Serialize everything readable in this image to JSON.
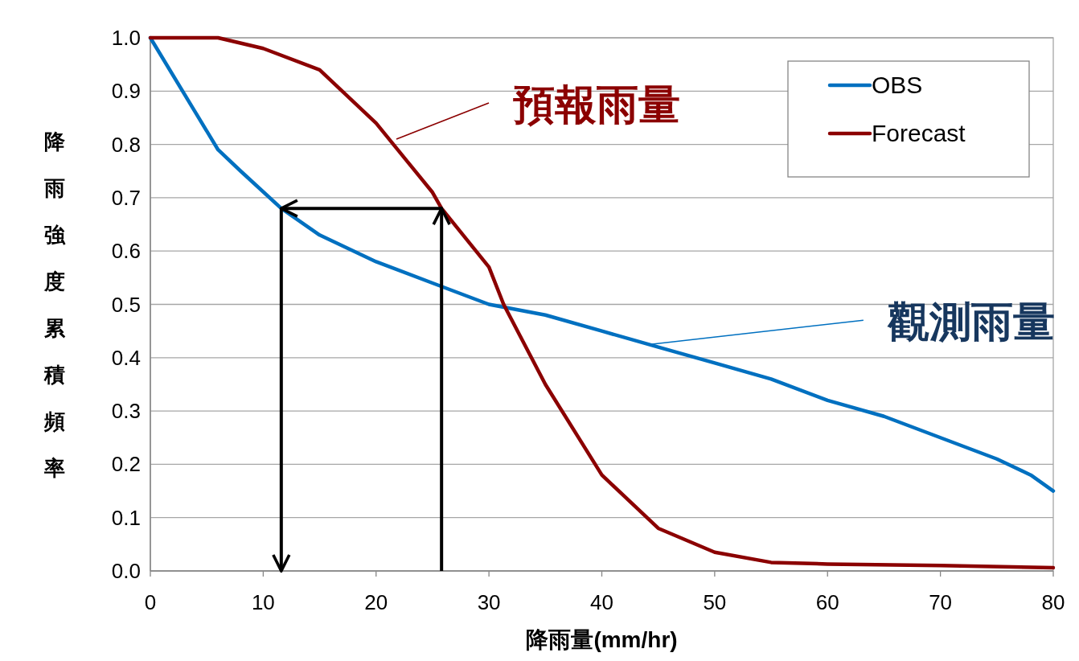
{
  "chart_data": {
    "type": "line",
    "xlabel": "降雨量(mm/hr)",
    "ylabel": "降雨強度累積頻率",
    "xlim": [
      0,
      80
    ],
    "xticks": [
      0,
      10,
      20,
      30,
      40,
      50,
      60,
      70,
      80
    ],
    "ylim": [
      0,
      1.0
    ],
    "yticks": [
      {
        "value": 0,
        "label": "0.0"
      },
      {
        "value": 0.1,
        "label": "0.1"
      },
      {
        "value": 0.2,
        "label": "0.2"
      },
      {
        "value": 0.3,
        "label": "0.3"
      },
      {
        "value": 0.4,
        "label": "0.4"
      },
      {
        "value": 0.5,
        "label": "0.5"
      },
      {
        "value": 0.6,
        "label": "0.6"
      },
      {
        "value": 0.7,
        "label": "0.7"
      },
      {
        "value": 0.8,
        "label": "0.8"
      },
      {
        "value": 0.9,
        "label": "0.9"
      },
      {
        "value": 1.0,
        "label": "1.0"
      }
    ],
    "grid": "y",
    "legend": "top right",
    "series": [
      {
        "name": "OBS",
        "color": "#0070c0",
        "x": [
          0,
          4,
          6,
          8,
          11.6,
          15,
          20,
          25,
          30,
          35,
          40,
          45,
          50,
          55,
          60,
          65,
          70,
          75,
          78,
          80
        ],
        "values": [
          1.0,
          0.86,
          0.79,
          0.75,
          0.68,
          0.63,
          0.58,
          0.54,
          0.5,
          0.48,
          0.45,
          0.42,
          0.39,
          0.36,
          0.32,
          0.29,
          0.25,
          0.21,
          0.18,
          0.15
        ]
      },
      {
        "name": "Forecast",
        "color": "#8b0000",
        "x": [
          0,
          3,
          6,
          10,
          15,
          20,
          25,
          25.8,
          30,
          31.3,
          35,
          40,
          45,
          50,
          55,
          60,
          70,
          80
        ],
        "values": [
          1.0,
          1.0,
          1.0,
          0.98,
          0.94,
          0.84,
          0.71,
          0.68,
          0.57,
          0.5,
          0.35,
          0.18,
          0.08,
          0.035,
          0.016,
          0.013,
          0.01,
          0.006
        ]
      },
      {
        "type": "line",
        "color": "#000000",
        "x": [
          25.8,
          25.8
        ],
        "values": [
          0,
          0.68
        ]
      },
      {
        "type": "line",
        "color": "#000000",
        "x": [
          25.8,
          11.6
        ],
        "values": [
          0.68,
          0.68
        ]
      },
      {
        "type": "line",
        "color": "#000000",
        "x": [
          11.6,
          11.6
        ],
        "values": [
          0.68,
          0
        ]
      }
    ],
    "annotations": [
      {
        "text": "預報雨量",
        "x": 21.8,
        "y": 0.81
      },
      {
        "text": "觀測雨量",
        "x": 44.3,
        "y": 0.425
      }
    ]
  }
}
